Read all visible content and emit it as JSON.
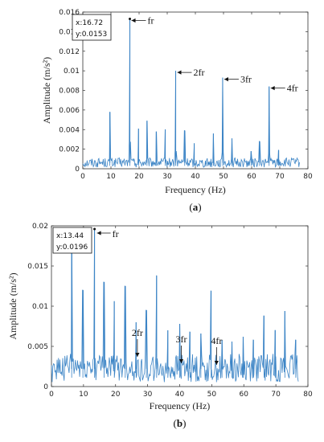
{
  "chart_data": [
    {
      "type": "line",
      "caption": "a",
      "xlabel": "Frequency (Hz)",
      "ylabel": "Amplitude (m/s²)",
      "xlim": [
        0,
        80
      ],
      "ylim": [
        0,
        0.016
      ],
      "xticks": [
        0,
        10,
        20,
        30,
        40,
        50,
        60,
        70,
        80
      ],
      "yticks": [
        0,
        0.002,
        0.004,
        0.006,
        0.008,
        0.01,
        0.012,
        0.014,
        0.016
      ],
      "ytick_labels": [
        "0",
        "0.002",
        "0.004",
        "0.006",
        "0.008",
        "0.01",
        "0.012",
        "0.014",
        "0.016"
      ],
      "color": "#3d85c6",
      "x_range": [
        0,
        77
      ],
      "baseline": 0.0006,
      "peaks": [
        {
          "x": 9.6,
          "y": 0.0058
        },
        {
          "x": 16.72,
          "y": 0.0153
        },
        {
          "x": 19.8,
          "y": 0.0041
        },
        {
          "x": 22.8,
          "y": 0.0049
        },
        {
          "x": 26.1,
          "y": 0.0038
        },
        {
          "x": 29.3,
          "y": 0.004
        },
        {
          "x": 33.0,
          "y": 0.01
        },
        {
          "x": 36.2,
          "y": 0.0039
        },
        {
          "x": 39.6,
          "y": 0.0026
        },
        {
          "x": 46.4,
          "y": 0.0036
        },
        {
          "x": 49.7,
          "y": 0.0093
        },
        {
          "x": 53.0,
          "y": 0.0031
        },
        {
          "x": 59.8,
          "y": 0.0018
        },
        {
          "x": 62.8,
          "y": 0.0028
        },
        {
          "x": 66.2,
          "y": 0.0084
        },
        {
          "x": 69.6,
          "y": 0.0019
        }
      ],
      "annotations": [
        {
          "text": "fr",
          "x": 16.72,
          "y": 0.0153
        },
        {
          "text": "2fr",
          "x": 33.0,
          "y": 0.01
        },
        {
          "text": "3fr",
          "x": 49.7,
          "y": 0.0093
        },
        {
          "text": "4fr",
          "x": 66.2,
          "y": 0.0084
        }
      ],
      "datatip": {
        "x_text": "x:16.72",
        "y_text": "y:0.0153"
      }
    },
    {
      "type": "line",
      "caption": "b",
      "xlabel": "Frequency (Hz)",
      "ylabel": "Amplitude (m/s²)",
      "xlim": [
        0,
        80
      ],
      "ylim": [
        0,
        0.02
      ],
      "xticks": [
        0,
        10,
        20,
        30,
        40,
        50,
        60,
        70,
        80
      ],
      "yticks": [
        0,
        0.005,
        0.01,
        0.015,
        0.02
      ],
      "ytick_labels": [
        "0",
        "0.005",
        "0.01",
        "0.015",
        "0.02"
      ],
      "color": "#3d85c6",
      "x_range": [
        0,
        77
      ],
      "baseline": 0.0022,
      "peaks": [
        {
          "x": 6.3,
          "y": 0.0172
        },
        {
          "x": 9.8,
          "y": 0.012
        },
        {
          "x": 13.44,
          "y": 0.0196
        },
        {
          "x": 16.4,
          "y": 0.013
        },
        {
          "x": 19.6,
          "y": 0.0106
        },
        {
          "x": 23.0,
          "y": 0.0125
        },
        {
          "x": 26.4,
          "y": 0.008
        },
        {
          "x": 29.6,
          "y": 0.0095
        },
        {
          "x": 32.8,
          "y": 0.0138
        },
        {
          "x": 36.3,
          "y": 0.007
        },
        {
          "x": 40.0,
          "y": 0.0078
        },
        {
          "x": 43.2,
          "y": 0.0068
        },
        {
          "x": 46.6,
          "y": 0.0066
        },
        {
          "x": 49.8,
          "y": 0.0119
        },
        {
          "x": 53.2,
          "y": 0.0058
        },
        {
          "x": 56.3,
          "y": 0.0056
        },
        {
          "x": 59.8,
          "y": 0.0062
        },
        {
          "x": 63.0,
          "y": 0.0058
        },
        {
          "x": 66.3,
          "y": 0.0088
        },
        {
          "x": 69.8,
          "y": 0.007
        },
        {
          "x": 72.8,
          "y": 0.0094
        },
        {
          "x": 76.2,
          "y": 0.0058
        }
      ],
      "annotations": [
        {
          "text": "fr",
          "x": 13.44,
          "y": 0.0196
        },
        {
          "text": "2fr",
          "x": 26.8,
          "y": 0.0037
        },
        {
          "text": "3fr",
          "x": 40.5,
          "y": 0.0029
        },
        {
          "text": "4fr",
          "x": 51.5,
          "y": 0.0027
        }
      ],
      "datatip": {
        "x_text": "x:13.44",
        "y_text": "y:0.0196"
      }
    }
  ]
}
